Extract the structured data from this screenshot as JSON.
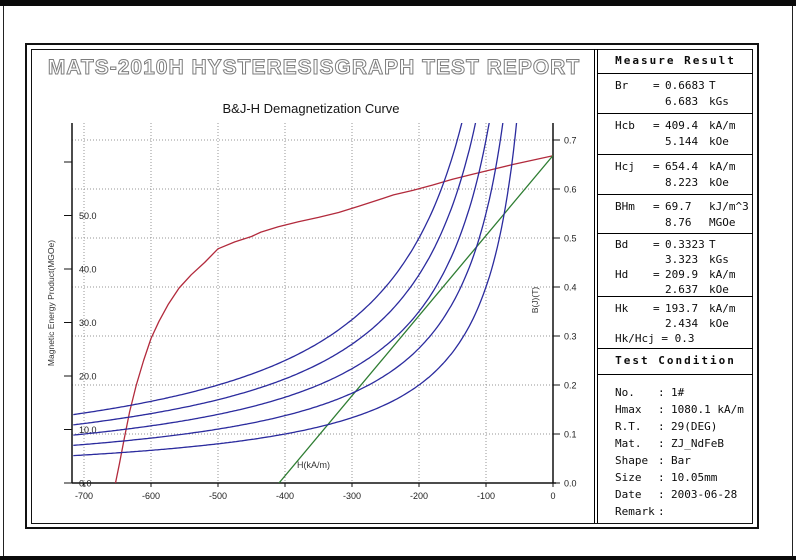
{
  "title": "MATS-2010H HYSTERESISGRAPH TEST REPORT",
  "chart_data": {
    "type": "line",
    "title": "B&J-H Demagnetization Curve",
    "xlabel": "H(kA/m)",
    "ylabel_left": "Magnetic Energy Product(MGOe)",
    "ylabel_right": "B(J)(T)",
    "grid": true,
    "grid_color": "#949494",
    "x_axis": {
      "min": -716,
      "max": 0,
      "ticks": [
        -700,
        -600,
        -500,
        -400,
        -300,
        -200,
        -100,
        0
      ]
    },
    "right_axis": {
      "min": 0,
      "max": 0.735,
      "unit": "T",
      "ticks": [
        0,
        0.1,
        0.2,
        0.3,
        0.4,
        0.5,
        0.6,
        0.7
      ]
    },
    "left_axis": {
      "min": 0,
      "max": 67,
      "unit": "MGOe",
      "ticks": [
        0,
        10,
        20,
        30,
        40,
        50,
        60
      ],
      "labeled_max": 50
    },
    "series": [
      {
        "name": "J-H intrinsic demagnetization curve",
        "color": "#b22a3c",
        "axis": "right",
        "points_H_T": [
          [
            -653,
            0
          ],
          [
            -647,
            0.04
          ],
          [
            -640,
            0.09
          ],
          [
            -632,
            0.145
          ],
          [
            -622,
            0.2
          ],
          [
            -611,
            0.25
          ],
          [
            -600,
            0.295
          ],
          [
            -588,
            0.33
          ],
          [
            -574,
            0.365
          ],
          [
            -558,
            0.398
          ],
          [
            -540,
            0.425
          ],
          [
            -520,
            0.45
          ],
          [
            -500,
            0.478
          ],
          [
            -475,
            0.492
          ],
          [
            -450,
            0.503
          ],
          [
            -436,
            0.512
          ],
          [
            -410,
            0.523
          ],
          [
            -380,
            0.533
          ],
          [
            -350,
            0.542
          ],
          [
            -320,
            0.552
          ],
          [
            -290,
            0.565
          ],
          [
            -260,
            0.578
          ],
          [
            -238,
            0.588
          ],
          [
            -210,
            0.597
          ],
          [
            -180,
            0.608
          ],
          [
            -150,
            0.62
          ],
          [
            -120,
            0.63
          ],
          [
            -90,
            0.64
          ],
          [
            -60,
            0.65
          ],
          [
            -30,
            0.659
          ],
          [
            0,
            0.668
          ]
        ]
      },
      {
        "name": "B-H normal demagnetization curve",
        "color": "#2e7d32",
        "axis": "right",
        "points_H_T": [
          [
            -409,
            0
          ],
          [
            0,
            0.6683
          ]
        ]
      },
      {
        "name": "constant energy product hyperbolas",
        "color": "#2b2b9e",
        "axis": "right",
        "bh_values_kJ_m3": [
          40,
          55,
          70,
          85,
          100
        ]
      }
    ]
  },
  "measure_panel": {
    "header": "Measure Result",
    "sections": [
      {
        "lines": [
          {
            "label": "Br",
            "eq": "=",
            "value": "0.6683",
            "unit": "T"
          },
          {
            "label": "",
            "eq": "",
            "value": "6.683",
            "unit": "kGs"
          }
        ]
      },
      {
        "lines": [
          {
            "label": "Hcb",
            "eq": "=",
            "value": "409.4",
            "unit": "kA/m"
          },
          {
            "label": "",
            "eq": "",
            "value": "5.144",
            "unit": "kOe"
          }
        ]
      },
      {
        "lines": [
          {
            "label": "Hcj",
            "eq": "=",
            "value": "654.4",
            "unit": "kA/m"
          },
          {
            "label": "",
            "eq": "",
            "value": "8.223",
            "unit": "kOe"
          }
        ]
      },
      {
        "lines": [
          {
            "label": "BHm",
            "eq": "=",
            "value": "69.7",
            "unit": "kJ/m^3"
          },
          {
            "label": "",
            "eq": "",
            "value": "8.76",
            "unit": "MGOe"
          }
        ]
      },
      {
        "lines": [
          {
            "label": "Bd",
            "eq": "=",
            "value": "0.3323",
            "unit": "T"
          },
          {
            "label": "",
            "eq": "",
            "value": "3.323",
            "unit": "kGs"
          },
          {
            "label": "Hd",
            "eq": "=",
            "value": "209.9",
            "unit": "kA/m"
          },
          {
            "label": "",
            "eq": "",
            "value": "2.637",
            "unit": "kOe"
          }
        ]
      },
      {
        "lines": [
          {
            "label": "Hk",
            "eq": "=",
            "value": "193.7",
            "unit": "kA/m"
          },
          {
            "label": "",
            "eq": "",
            "value": "2.434",
            "unit": "kOe"
          },
          {
            "full": "Hk/Hcj = 0.3"
          }
        ]
      }
    ]
  },
  "condition_panel": {
    "header": "Test Condition",
    "rows": [
      {
        "label": "No.",
        "value": "1#"
      },
      {
        "label": "Hmax",
        "value": "1080.1 kA/m"
      },
      {
        "label": "R.T.",
        "value": "29(DEG)"
      },
      {
        "label": "Mat.",
        "value": "ZJ_NdFeB"
      },
      {
        "label": "Shape",
        "value": "Bar"
      },
      {
        "label": "Size",
        "value": "10.05mm"
      },
      {
        "label": "Date",
        "value": "2003-06-28"
      },
      {
        "label": "Remark",
        "value": ""
      }
    ]
  }
}
